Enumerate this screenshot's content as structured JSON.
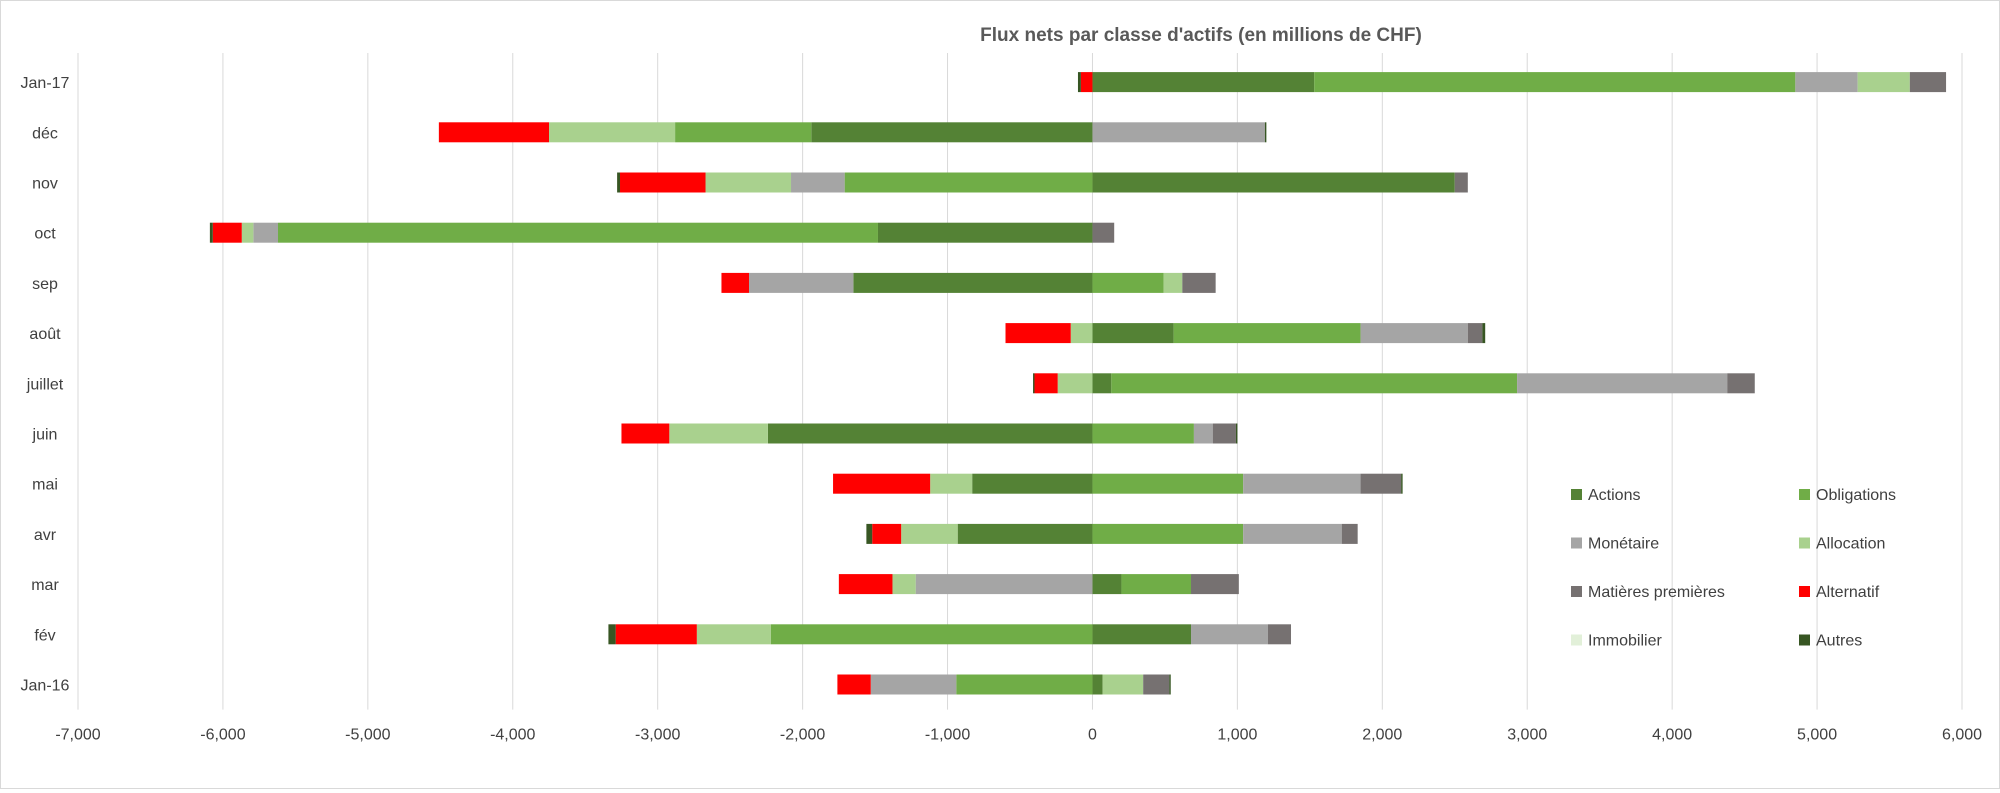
{
  "chart_data": {
    "type": "bar",
    "orientation": "horizontal",
    "stacked": true,
    "title": "Flux nets par classe d'actifs (en millions de CHF)",
    "xlim": [
      -7000,
      6000
    ],
    "xticks": [
      -7000,
      -6000,
      -5000,
      -4000,
      -3000,
      -2000,
      -1000,
      0,
      1000,
      2000,
      3000,
      4000,
      5000,
      6000
    ],
    "xtick_labels": [
      "-7,000",
      "-6,000",
      "-5,000",
      "-4,000",
      "-3,000",
      "-2,000",
      "-1,000",
      "0",
      "1,000",
      "2,000",
      "3,000",
      "4,000",
      "5,000",
      "6,000"
    ],
    "grid": "vertical",
    "legend_position": "bottom-right",
    "categories": [
      "Jan-17",
      "déc",
      "nov",
      "oct",
      "sep",
      "août",
      "juillet",
      "juin",
      "mai",
      "avr",
      "mar",
      "fév",
      "Jan-16"
    ],
    "series": [
      {
        "name": "Actions",
        "color": "#548235",
        "values": [
          1530,
          -1940,
          2500,
          -1480,
          -1650,
          560,
          130,
          -2240,
          -830,
          -930,
          200,
          680,
          70
        ]
      },
      {
        "name": "Obligations",
        "color": "#70ad47",
        "values": [
          3320,
          -940,
          -1710,
          -4140,
          490,
          1290,
          2800,
          700,
          1040,
          1040,
          480,
          -2220,
          -940
        ]
      },
      {
        "name": "Monétaire",
        "color": "#a5a5a5",
        "values": [
          430,
          1190,
          -370,
          -170,
          -720,
          740,
          1450,
          130,
          810,
          680,
          -1220,
          530,
          -590
        ]
      },
      {
        "name": "Allocation",
        "color": "#a9d18e",
        "values": [
          360,
          -870,
          -590,
          -80,
          130,
          -150,
          -240,
          -680,
          -290,
          -390,
          -160,
          -510,
          280
        ]
      },
      {
        "name": "Matières premières",
        "color": "#767171",
        "values": [
          250,
          0,
          90,
          150,
          230,
          100,
          190,
          160,
          280,
          110,
          330,
          160,
          180
        ]
      },
      {
        "name": "Alternatif",
        "color": "#ff0000",
        "values": [
          -80,
          -760,
          -590,
          -200,
          -190,
          -450,
          -160,
          -330,
          -670,
          -200,
          -370,
          -560,
          -230
        ]
      },
      {
        "name": "Immobilier",
        "color": "#e2f0d9",
        "values": [
          0,
          0,
          0,
          0,
          0,
          0,
          0,
          0,
          0,
          0,
          0,
          0,
          0
        ]
      },
      {
        "name": "Autres",
        "color": "#375623",
        "values": [
          -20,
          10,
          -20,
          -20,
          0,
          20,
          -10,
          10,
          10,
          -40,
          0,
          -50,
          10
        ]
      }
    ]
  }
}
